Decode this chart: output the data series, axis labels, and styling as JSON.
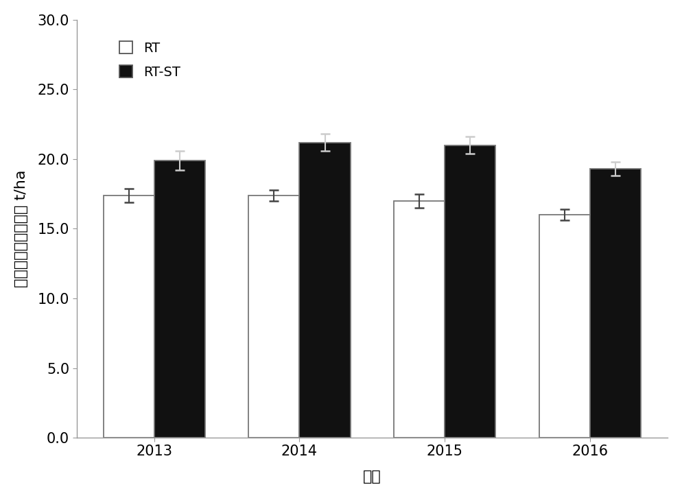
{
  "years": [
    "2013",
    "2014",
    "2015",
    "2016"
  ],
  "rt_values": [
    17.4,
    17.4,
    17.0,
    16.0
  ],
  "rt_st_values": [
    19.9,
    21.2,
    21.0,
    19.3
  ],
  "rt_errors": [
    0.5,
    0.4,
    0.5,
    0.4
  ],
  "rt_st_errors": [
    0.7,
    0.6,
    0.6,
    0.5
  ],
  "ylabel": "小麦玉米周年总产量 t/ha",
  "xlabel": "年份",
  "legend_rt": "RT",
  "legend_rt_st": "RT-ST",
  "ylim_min": 0.0,
  "ylim_max": 30.0,
  "yticks": [
    0.0,
    5.0,
    10.0,
    15.0,
    20.0,
    25.0,
    30.0
  ],
  "bar_width": 0.35,
  "rt_color": "#ffffff",
  "rt_st_color": "#111111",
  "edge_color": "#777777",
  "axis_fontsize": 16,
  "tick_fontsize": 15,
  "legend_fontsize": 14,
  "background_color": "#ffffff",
  "spine_color": "#999999"
}
